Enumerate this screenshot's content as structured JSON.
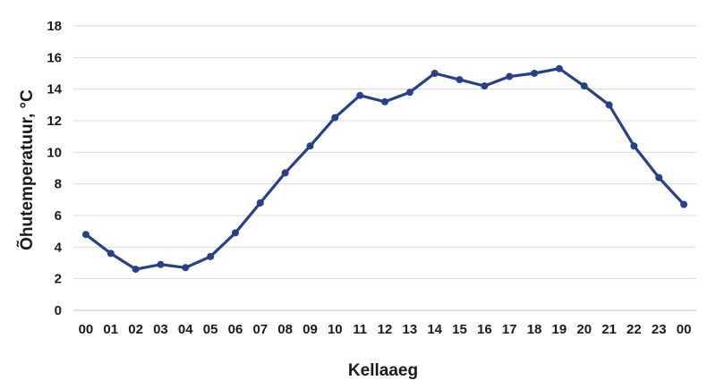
{
  "chart_data": {
    "type": "line",
    "xlabel": "Kellaaeg",
    "ylabel": "Õhutemperatuur, °C",
    "ylim": [
      0,
      18
    ],
    "yticks": [
      "0",
      "2",
      "4",
      "6",
      "8",
      "10",
      "12",
      "14",
      "16",
      "18"
    ],
    "grid": "horizontal",
    "legend": "none",
    "categories": [
      "00",
      "01",
      "02",
      "03",
      "04",
      "05",
      "06",
      "07",
      "08",
      "09",
      "10",
      "11",
      "12",
      "13",
      "14",
      "15",
      "16",
      "17",
      "18",
      "19",
      "20",
      "21",
      "22",
      "23",
      "00"
    ],
    "series": [
      {
        "color": "#26408b",
        "values": [
          4.8,
          3.6,
          2.6,
          2.9,
          2.7,
          3.4,
          4.9,
          6.8,
          8.7,
          10.4,
          12.2,
          13.6,
          13.2,
          13.8,
          15.0,
          14.6,
          14.2,
          14.8,
          15.0,
          15.3,
          14.2,
          13.0,
          10.4,
          8.4,
          6.7
        ]
      }
    ]
  }
}
